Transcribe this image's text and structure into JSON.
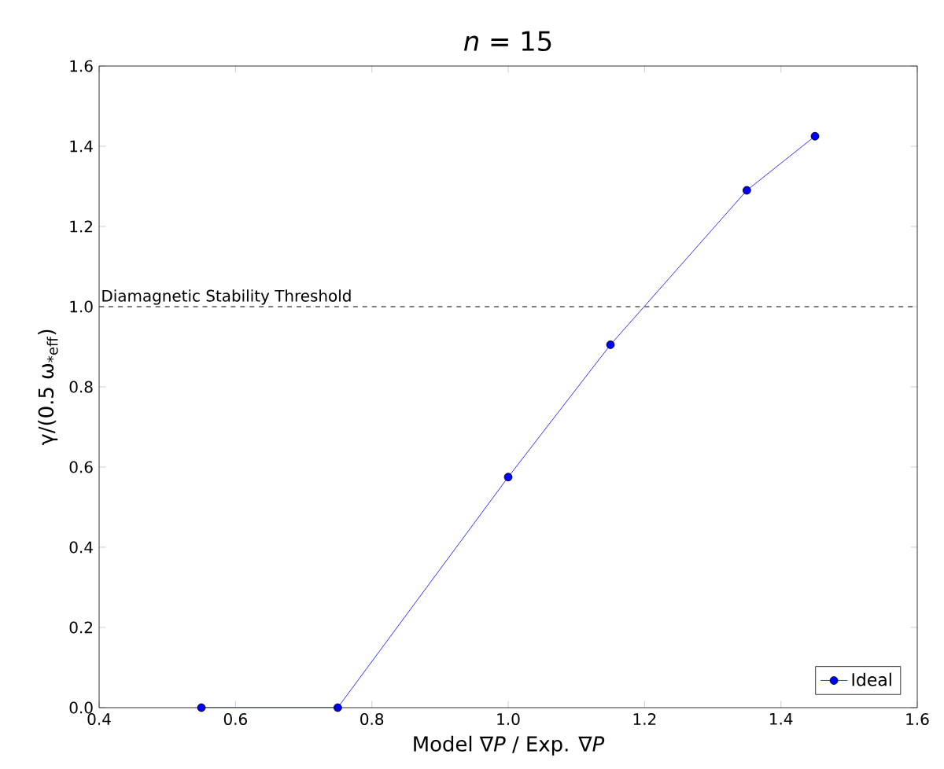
{
  "chart_data": {
    "type": "line",
    "title": "*n* = 15",
    "xlabel": "Model ∇*P* / Exp. ∇*P*",
    "ylabel": "γ/(0.5 ω$_{*eff}$)",
    "x": [
      0.55,
      0.75,
      1.0,
      1.15,
      1.35,
      1.45
    ],
    "series": [
      {
        "name": "Ideal",
        "color": "#0000ff",
        "values": [
          0.0,
          0.0,
          0.575,
          0.905,
          1.29,
          1.425
        ]
      }
    ],
    "xlim": [
      0.4,
      1.6
    ],
    "xticks": [
      0.4,
      0.6,
      0.8,
      {
        "value": 1.0,
        "label": "1.0"
      },
      1.2,
      1.4,
      1.6
    ],
    "ylim": [
      0.0,
      1.6
    ],
    "yticks": [
      {
        "value": 0.0,
        "label": "0.0"
      },
      0.2,
      0.4,
      0.6,
      0.8,
      {
        "value": 1.0,
        "label": "1.0"
      },
      1.2,
      1.4,
      1.6
    ],
    "ref_lines": [
      {
        "axis": "y",
        "value": 1.0,
        "label": "Diamagnetic Stability Threshold",
        "color": "#555555",
        "line_style": "dashed"
      }
    ],
    "marker": "circle",
    "line_style": "solid",
    "legend": "bottom right",
    "grid": false
  }
}
